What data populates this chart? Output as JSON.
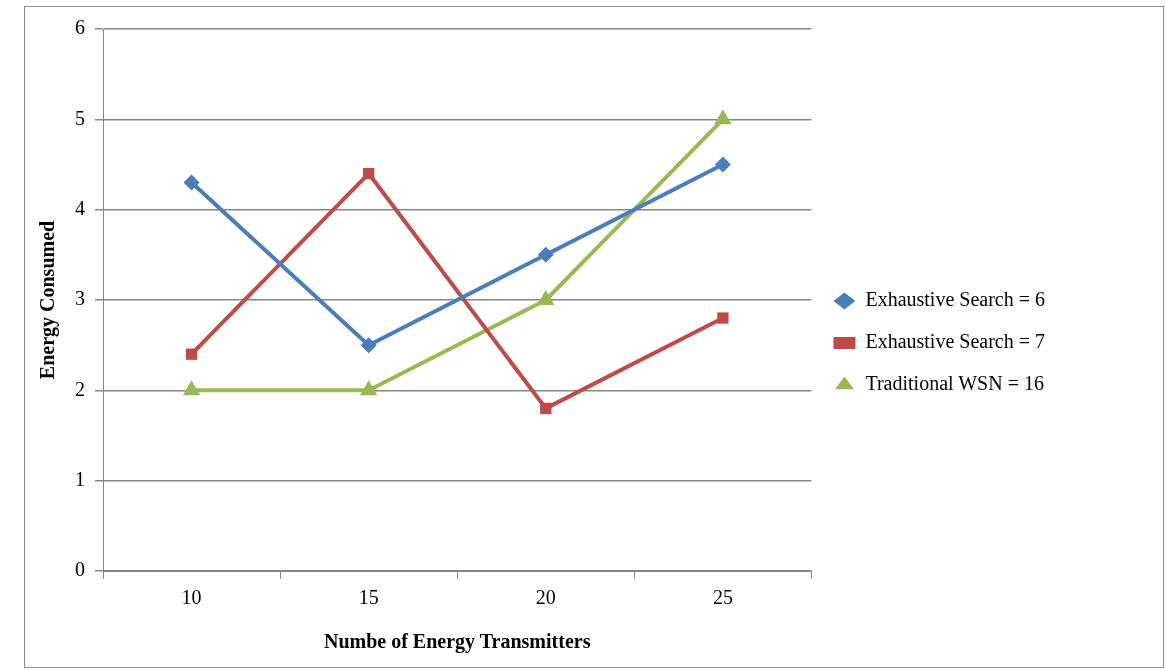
{
  "chart_data": {
    "type": "line",
    "xlabel": "Numbe of Energy Transmitters",
    "ylabel": "Energy Consumed",
    "categories": [
      "10",
      "15",
      "20",
      "25"
    ],
    "series": [
      {
        "name": "Exhaustive Search = 6",
        "color": "#4a7ebb",
        "marker": "diamond",
        "values": [
          4.3,
          2.5,
          3.5,
          4.5
        ]
      },
      {
        "name": "Exhaustive Search = 7",
        "color": "#be4b48",
        "marker": "square",
        "values": [
          2.4,
          4.4,
          1.8,
          2.8
        ]
      },
      {
        "name": "Traditional WSN = 16",
        "color": "#98b954",
        "marker": "triangle",
        "values": [
          2,
          2,
          3,
          5
        ]
      }
    ],
    "ylim": [
      0,
      6
    ],
    "yticks": [
      0,
      1,
      2,
      3,
      4,
      5,
      6
    ],
    "grid": "y",
    "legend": "right",
    "line_style": "solid"
  }
}
